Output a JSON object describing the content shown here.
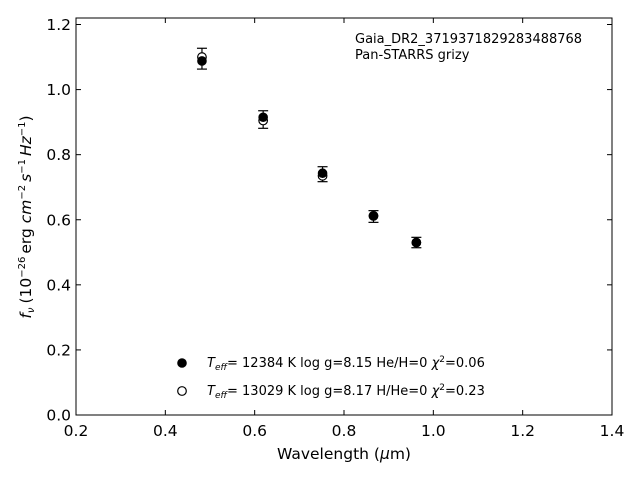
{
  "chart_data": {
    "type": "scatter",
    "annotation": {
      "line1": "Gaia_DR2_3719371829283488768",
      "line2": "Pan-STARRS grizy"
    },
    "xlabel": {
      "pre": "Wavelength (",
      "greek": "μ",
      "post": "m)"
    },
    "ylabel": {
      "f": "f",
      "f_sub": "ν",
      "p1": "(10",
      "exp1": "−26",
      "p2": "erg ",
      "cm": "cm",
      "exp2": "−2",
      "s": "s",
      "exp3": "−1",
      "hz": "Hz",
      "exp4": "−1",
      "p3": ")"
    },
    "xlim": [
      0.2,
      1.4
    ],
    "ylim": [
      0.0,
      1.22
    ],
    "xticks": [
      0.2,
      0.4,
      0.6,
      0.8,
      1.0,
      1.2,
      1.4
    ],
    "xtick_labels": [
      "0.2",
      "0.4",
      "0.6",
      "0.8",
      "1.0",
      "1.2",
      "1.4"
    ],
    "yticks": [
      0.0,
      0.2,
      0.4,
      0.6,
      0.8,
      1.0,
      1.2
    ],
    "ytick_labels": [
      "0.0",
      "0.2",
      "0.4",
      "0.6",
      "0.8",
      "1.0",
      "1.2"
    ],
    "observed": {
      "x": [
        0.482,
        0.619,
        0.752,
        0.866,
        0.962
      ],
      "y": [
        1.095,
        0.908,
        0.74,
        0.61,
        0.53
      ],
      "yerr": [
        0.032,
        0.027,
        0.023,
        0.018,
        0.016
      ]
    },
    "series": [
      {
        "legend": {
          "t": "T",
          "t_sub": "eff",
          "body": "= 12384 K  log g=8.15  He/H=0  ",
          "chi": "χ",
          "chi_sup": "2",
          "chi_val": "=0.06"
        },
        "marker": "filled",
        "x": [
          0.482,
          0.619,
          0.752,
          0.866,
          0.962
        ],
        "y": [
          1.088,
          0.915,
          0.743,
          0.612,
          0.53
        ]
      },
      {
        "legend": {
          "t": "T",
          "t_sub": "eff",
          "body": "= 13029 K  log g=8.17  H/He=0  ",
          "chi": "χ",
          "chi_sup": "2",
          "chi_val": "=0.23"
        },
        "marker": "open",
        "x": [
          0.482,
          0.619,
          0.752,
          0.866,
          0.962
        ],
        "y": [
          1.1,
          0.905,
          0.735,
          0.612,
          0.53
        ]
      }
    ]
  }
}
